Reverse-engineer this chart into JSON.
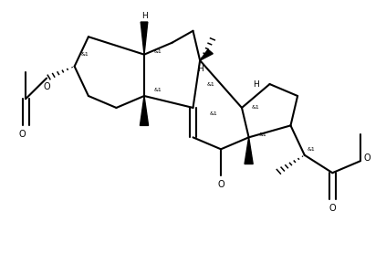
{
  "background_color": "#ffffff",
  "line_color": "#000000",
  "line_width": 1.5,
  "figsize": [
    4.23,
    2.78
  ],
  "dpi": 100,
  "xlim": [
    -5,
    105
  ],
  "ylim": [
    -5,
    80
  ]
}
